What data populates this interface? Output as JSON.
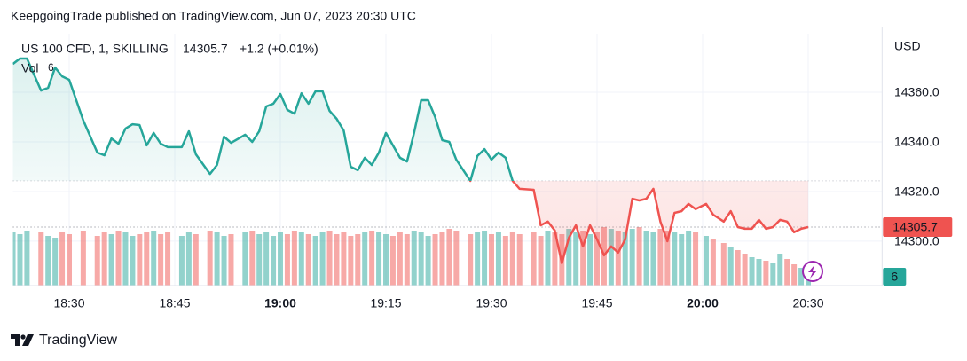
{
  "header": {
    "text": "KeepgoingTrade published on TradingView.com, Jun 07, 2023 20:30 UTC"
  },
  "chart_data": {
    "type": "baseline",
    "symbol": "US 100 CFD, 1, SKILLING",
    "last_price": 14305.7,
    "change": "+1.2 (+0.01%)",
    "y_unit": "USD",
    "baseline": 14324.3,
    "up_color": "#26a69a",
    "down_color": "#ef5350",
    "grid": true,
    "x": [
      22,
      23,
      24,
      26,
      27,
      28,
      29,
      30,
      32,
      34,
      35,
      36,
      37,
      38,
      39,
      40,
      41,
      42,
      43,
      44,
      46,
      47,
      48,
      50,
      51,
      52,
      53,
      55,
      56,
      57,
      58,
      59,
      60,
      61,
      62,
      63,
      64,
      65,
      66,
      67,
      68,
      69,
      70,
      71,
      72,
      73,
      74,
      75,
      76,
      77,
      78,
      79,
      80,
      81,
      82,
      83,
      84,
      85,
      87,
      88,
      89,
      90,
      91,
      92,
      93,
      94,
      96,
      97,
      98,
      99,
      100,
      101,
      102,
      103,
      104,
      105,
      106,
      107,
      108,
      109,
      110,
      111,
      112,
      113,
      114,
      115,
      116,
      117,
      118,
      119,
      121,
      123,
      126,
      128,
      130,
      132,
      134,
      136,
      138,
      140,
      142,
      144,
      146,
      148,
      150
    ],
    "values": [
      14371.4,
      14373.6,
      14373.6,
      14360.7,
      14361.8,
      14370,
      14366.4,
      14365,
      14348.6,
      14335.7,
      14334.6,
      14341.4,
      14339.3,
      14345.4,
      14347.1,
      14346.8,
      14338.6,
      14343.6,
      14339.3,
      14337.9,
      14337.9,
      14344.3,
      14335,
      14327.1,
      14330.7,
      14342.1,
      14339.6,
      14342.9,
      14340,
      14344.3,
      14354.3,
      14355.4,
      14359.3,
      14352.9,
      14351.4,
      14359.6,
      14355.4,
      14360.4,
      14360.4,
      14352.5,
      14349.3,
      14344.6,
      14330,
      14328.6,
      14333.6,
      14330.7,
      14335.7,
      14343.6,
      14338.6,
      14333.6,
      14332.1,
      14343.6,
      14356.8,
      14356.8,
      14350,
      14340.7,
      14340,
      14332.9,
      14324.3,
      14334.3,
      14337.1,
      14332.9,
      14335.7,
      14333.6,
      14324.3,
      14321.1,
      14320.7,
      14306.4,
      14307.9,
      14304.3,
      14291.1,
      14301.4,
      14306.4,
      14297.9,
      14306.4,
      14300.7,
      14294.3,
      14297.9,
      14295.4,
      14300.7,
      14317.1,
      14316.4,
      14317.1,
      14321.1,
      14307.9,
      14300,
      14311.4,
      14312.1,
      14315,
      14312.9,
      14315,
      14310.7,
      14307.9,
      14312.1,
      14305.7,
      14305,
      14305,
      14308.6,
      14305,
      14305.7,
      14308.6,
      14307.9,
      14303.6,
      14305,
      14305.7
    ],
    "volume": {
      "name": "Vol",
      "values": [
        30,
        29,
        31,
        30,
        28,
        27,
        30,
        29,
        31,
        28,
        30,
        29,
        31,
        30,
        28,
        29,
        30,
        31,
        29,
        30,
        28,
        30,
        29,
        31,
        30,
        28,
        29,
        30,
        31,
        29,
        30,
        28,
        30,
        29,
        31,
        30,
        29,
        28,
        30,
        31,
        29,
        30,
        28,
        29,
        30,
        31,
        30,
        29,
        28,
        30,
        29,
        31,
        30,
        28,
        29,
        30,
        32,
        31,
        29,
        30,
        31,
        29,
        30,
        28,
        30,
        29,
        30,
        28,
        31,
        30,
        29,
        32,
        30,
        31,
        29,
        30,
        33,
        32,
        31,
        30,
        32,
        33,
        31,
        30,
        32,
        31,
        30,
        29,
        31,
        30,
        28,
        26,
        24,
        22,
        20,
        18,
        16,
        15,
        14,
        13,
        18,
        15,
        12,
        10,
        6
      ]
    },
    "xlim": [
      22,
      171
    ],
    "xticks": [
      {
        "value": 30,
        "label": "18:30"
      },
      {
        "value": 45,
        "label": "18:45"
      },
      {
        "value": 60,
        "label": "19:00"
      },
      {
        "value": 75,
        "label": "19:15"
      },
      {
        "value": 90,
        "label": "19:30"
      },
      {
        "value": 105,
        "label": "19:45"
      },
      {
        "value": 120,
        "label": "20:00"
      },
      {
        "value": 150,
        "label": "20:30"
      }
    ],
    "ylim": [
      14282.1,
      14383.6
    ],
    "yticks": [
      {
        "value": 14300,
        "label": "14300.0"
      },
      {
        "value": 14320,
        "label": "14320.0"
      },
      {
        "value": 14340,
        "label": "14340.0"
      },
      {
        "value": 14360,
        "label": "14360.0"
      }
    ]
  },
  "footer": {
    "brand": "TradingView"
  }
}
